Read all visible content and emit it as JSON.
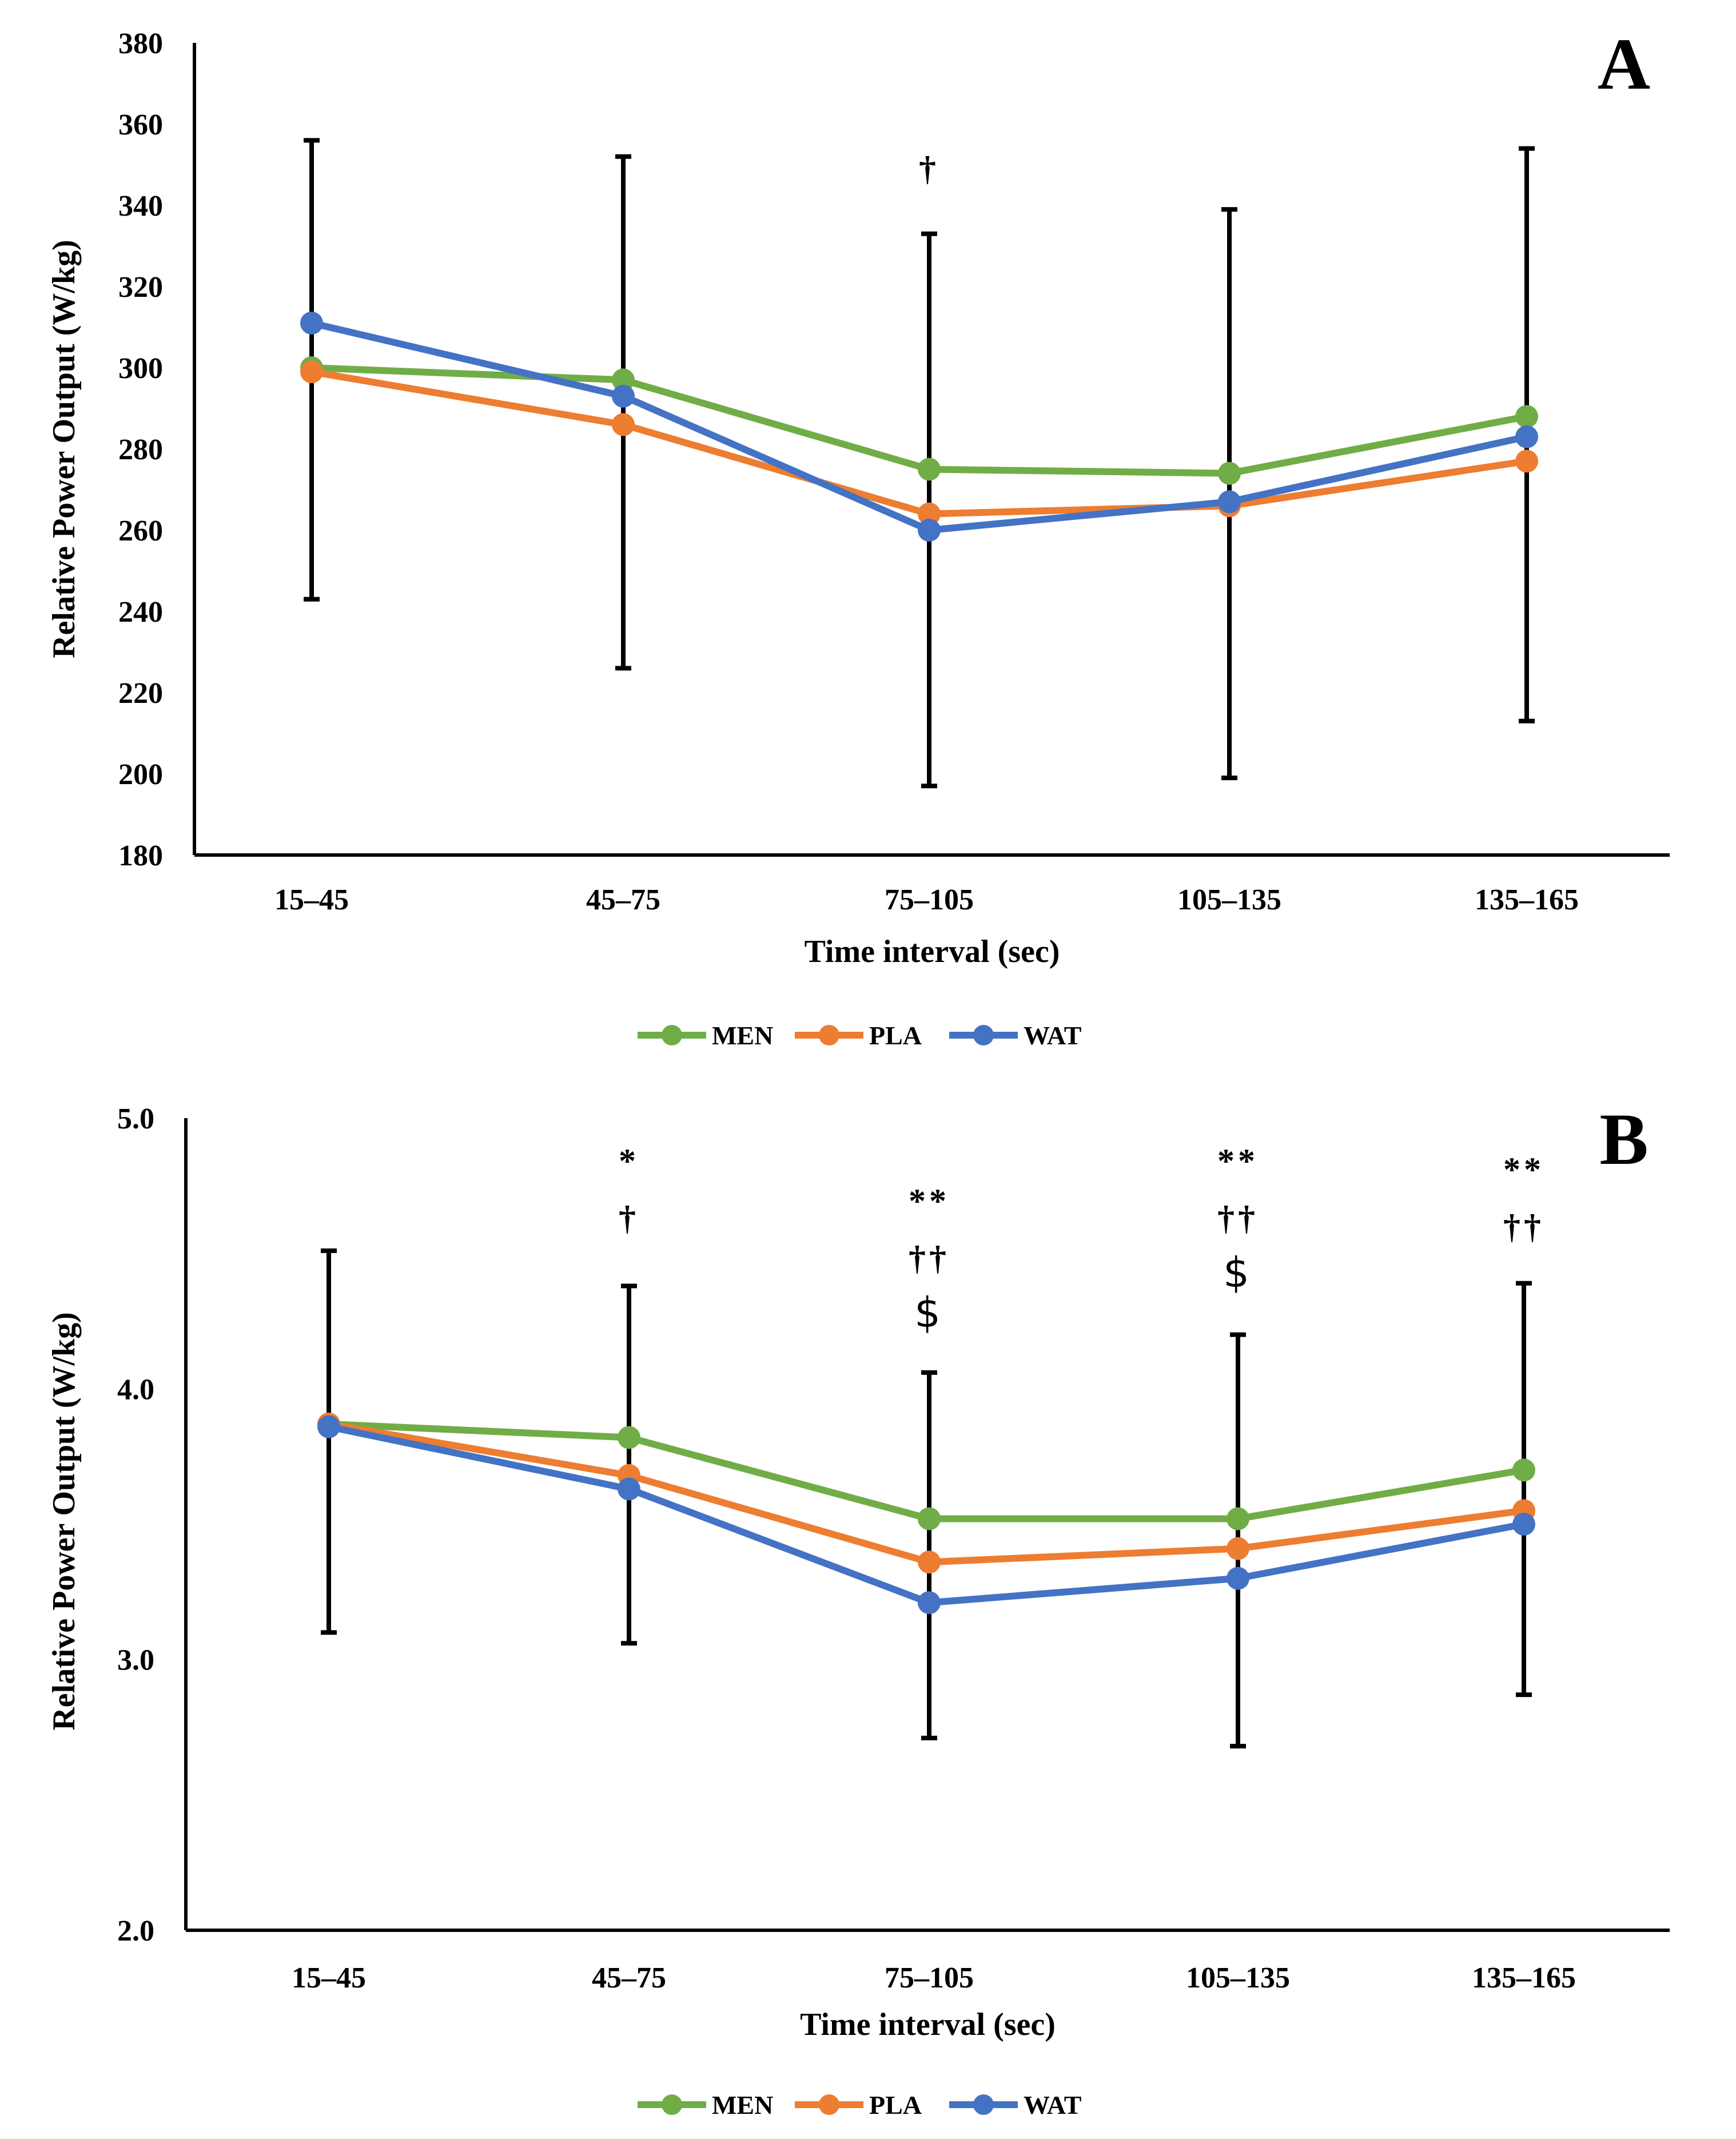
{
  "chart_data": [
    {
      "panel": "A",
      "type": "line",
      "xlabel": "Time interval (sec)",
      "ylabel": "Relative Power Output (W/kg)",
      "ylim": [
        180,
        380
      ],
      "yticks": [
        "180",
        "200",
        "220",
        "240",
        "260",
        "280",
        "300",
        "320",
        "340",
        "360",
        "380"
      ],
      "categories": [
        "15–45",
        "45–75",
        "75–105",
        "105–135",
        "135–165"
      ],
      "series": [
        {
          "name": "MEN",
          "color": "#70ad47",
          "values": [
            300,
            297,
            275,
            274,
            288
          ]
        },
        {
          "name": "PLA",
          "color": "#ed7d31",
          "values": [
            299,
            286,
            264,
            266,
            277
          ]
        },
        {
          "name": "WAT",
          "color": "#4472c4",
          "values": [
            311,
            293,
            260,
            267,
            283
          ]
        }
      ],
      "error_bars": [
        {
          "low": 243,
          "high": 356
        },
        {
          "low": 226,
          "high": 352
        },
        {
          "low": 197,
          "high": 333
        },
        {
          "low": 199,
          "high": 339
        },
        {
          "low": 213,
          "high": 354
        }
      ],
      "annotations": [
        [],
        [],
        [
          "†"
        ],
        [],
        []
      ],
      "legend": [
        "MEN",
        "PLA",
        "WAT"
      ]
    },
    {
      "panel": "B",
      "type": "line",
      "xlabel": "Time interval (sec)",
      "ylabel": "Relative Power Output (W/kg)",
      "ylim": [
        2.0,
        5.0
      ],
      "yticks": [
        "2.0",
        "3.0",
        "4.0",
        "5.0"
      ],
      "categories": [
        "15–45",
        "45–75",
        "75–105",
        "105–135",
        "135–165"
      ],
      "series": [
        {
          "name": "MEN",
          "color": "#70ad47",
          "values": [
            3.87,
            3.82,
            3.52,
            3.52,
            3.7
          ]
        },
        {
          "name": "PLA",
          "color": "#ed7d31",
          "values": [
            3.87,
            3.68,
            3.36,
            3.41,
            3.55
          ]
        },
        {
          "name": "WAT",
          "color": "#4472c4",
          "values": [
            3.86,
            3.63,
            3.21,
            3.3,
            3.5
          ]
        }
      ],
      "error_bars": [
        {
          "low": 3.1,
          "high": 4.51
        },
        {
          "low": 3.06,
          "high": 4.38
        },
        {
          "low": 2.71,
          "high": 4.06
        },
        {
          "low": 2.68,
          "high": 4.2
        },
        {
          "low": 2.87,
          "high": 4.39
        }
      ],
      "annotations": [
        [],
        [
          "*",
          "†"
        ],
        [
          "**",
          "††",
          "$"
        ],
        [
          "**",
          "††",
          "$"
        ],
        [
          "**",
          "††"
        ]
      ],
      "legend": [
        "MEN",
        "PLA",
        "WAT"
      ]
    }
  ]
}
